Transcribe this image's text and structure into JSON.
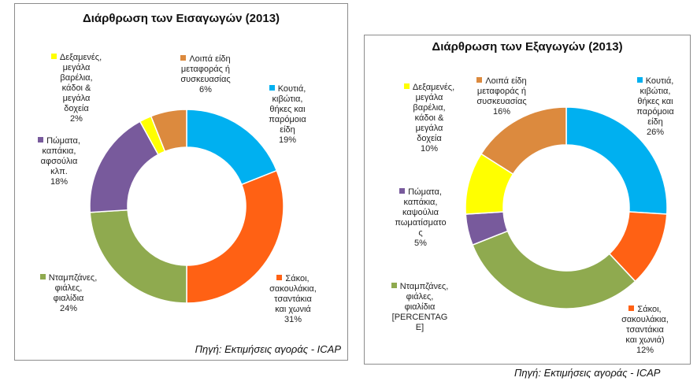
{
  "chart_data": [
    {
      "type": "donut",
      "title": "Διάρθρωση των Εισαγωγών (2013)",
      "source": "Πηγή: Εκτιμήσεις αγοράς - ICAP",
      "series": [
        {
          "name": "Κουτιά, κιβώτια, θήκες και παρόμοια είδη",
          "lines": [
            "Κουτιά,",
            "κιβώτια,",
            "θήκες και",
            "παρόμοια",
            "είδη"
          ],
          "value": 19,
          "label": "19%",
          "color": "#00b0f0"
        },
        {
          "name": "Σάκοι, σακουλάκια, τσαντάκια και χωνιά",
          "lines": [
            "Σάκοι,",
            "σακουλάκια,",
            "τσαντάκια",
            "και χωνιά"
          ],
          "value": 31,
          "label": "31%",
          "color": "#ff6114"
        },
        {
          "name": "Νταμπζάνες, φιάλες, φιαλίδια",
          "lines": [
            "Νταμπζάνες,",
            "φιάλες,",
            "φιαλίδια"
          ],
          "value": 24,
          "label": "24%",
          "color": "#8faa4f"
        },
        {
          "name": "Πώματα, καπάκια, αφσούλια κλπ.",
          "lines": [
            "Πώματα,",
            "καπάκια,",
            "αφσούλια",
            "κλπ."
          ],
          "value": 18,
          "label": "18%",
          "color": "#785a9c"
        },
        {
          "name": "Δεξαμενές, μεγάλα βαρέλια, κάδοι & μεγάλα δοχεία",
          "lines": [
            "Δεξαμενές,",
            "μεγάλα",
            "βαρέλια,",
            "κάδοι &",
            "μεγάλα",
            "δοχεία"
          ],
          "value": 2,
          "label": "2%",
          "color": "#ffff00"
        },
        {
          "name": "Λοιπά είδη μεταφοράς ή συσκευασίας",
          "lines": [
            "Λοιπά είδη",
            "μεταφοράς ή",
            "συσκευασίας"
          ],
          "value": 6,
          "label": "6%",
          "color": "#dc8a3e"
        }
      ]
    },
    {
      "type": "donut",
      "title": "Διάρθρωση των Εξαγωγών (2013)",
      "source": "Πηγή: Εκτιμήσεις αγοράς - ICAP",
      "series": [
        {
          "name": "Κουτιά, κιβώτια, θήκες και παρόμοια είδη",
          "lines": [
            "Κουτιά,",
            "κιβώτια,",
            "θήκες και",
            "παρόμοια",
            "είδη"
          ],
          "value": 26,
          "label": "26%",
          "color": "#00b0f0"
        },
        {
          "name": "Σάκοι, σακουλάκια, τσαντάκια και χωνιά)",
          "lines": [
            "Σάκοι,",
            "σακουλάκια,",
            "τσαντάκια",
            "και χωνιά)"
          ],
          "value": 12,
          "label": "12%",
          "color": "#ff6114"
        },
        {
          "name": "Νταμπζάνες, φιάλες, φιαλίδια",
          "lines": [
            "Νταμπζάνες,",
            "φιάλες,",
            "φιαλίδια"
          ],
          "value": 31,
          "label": "[PERCENTAG E]",
          "label_lines": [
            "[PERCENTAG",
            "E]"
          ],
          "color": "#8faa4f"
        },
        {
          "name": "Πώματα, καπάκια, καψούλια πωματίσματος",
          "lines": [
            "Πώματα,",
            "καπάκια,",
            "καψούλια",
            "πωματίσματο",
            "ς"
          ],
          "value": 5,
          "label": "5%",
          "color": "#785a9c"
        },
        {
          "name": "Δεξαμενές, μεγάλα βαρέλια, κάδοι & μεγάλα δοχεία",
          "lines": [
            "Δεξαμενές,",
            "μεγάλα",
            "βαρέλια,",
            "κάδοι &",
            "μεγάλα",
            "δοχεία"
          ],
          "value": 10,
          "label": "10%",
          "color": "#ffff00"
        },
        {
          "name": "Λοιπά είδη μεταφοράς ή συσκευασίας",
          "lines": [
            "Λοιπά είδη",
            "μεταφοράς ή",
            "συσκευασίας"
          ],
          "value": 16,
          "label": "16%",
          "color": "#dc8a3e"
        }
      ]
    }
  ]
}
